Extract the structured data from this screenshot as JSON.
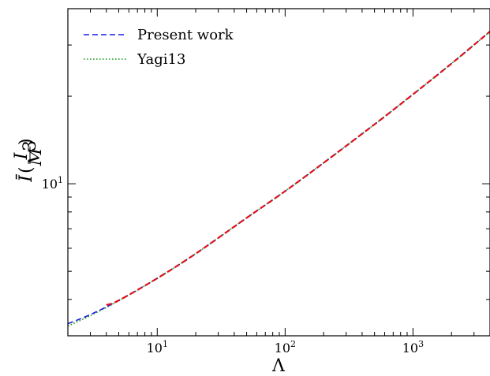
{
  "chart_data": {
    "type": "line",
    "xscale": "log",
    "yscale": "log",
    "xlim": [
      2,
      4000
    ],
    "ylim": [
      3,
      40
    ],
    "xlabel": "Λ",
    "ylabel_main": "Ī",
    "ylabel_frac_num": "I",
    "ylabel_frac_den": "M",
    "ylabel_frac_den_exp": "3",
    "x_ticks": [
      {
        "base": "10",
        "exp": "1",
        "value": 10
      },
      {
        "base": "10",
        "exp": "2",
        "value": 100
      },
      {
        "base": "10",
        "exp": "3",
        "value": 1000
      }
    ],
    "y_ticks": [
      {
        "base": "10",
        "exp": "1",
        "value": 10
      }
    ],
    "legend_position": "upper-left",
    "series": [
      {
        "name": "Present work",
        "color": "#1f1fdd",
        "style": "dashed",
        "x": [
          2,
          3,
          5,
          10,
          20,
          50,
          100,
          200,
          500,
          1000,
          2000,
          4000
        ],
        "y": [
          3.3,
          3.55,
          3.97,
          4.73,
          5.75,
          7.63,
          9.43,
          11.8,
          16.0,
          20.3,
          25.9,
          33.4
        ]
      },
      {
        "name": "Yagi13",
        "color": "#1a9a1a",
        "style": "dotted",
        "x": [
          2,
          3,
          5,
          10,
          20,
          50,
          100,
          200,
          500,
          1000,
          2000,
          4000
        ],
        "y": [
          3.24,
          3.52,
          3.96,
          4.73,
          5.75,
          7.63,
          9.43,
          11.8,
          16.0,
          20.3,
          25.9,
          33.4
        ]
      },
      {
        "name": "",
        "color": "#e0101a",
        "style": "dashed",
        "x": [
          4,
          5,
          10,
          20,
          50,
          100,
          200,
          500,
          1000,
          2000,
          4000
        ],
        "y": [
          3.83,
          3.97,
          4.73,
          5.75,
          7.63,
          9.43,
          11.8,
          16.0,
          20.3,
          25.9,
          33.4
        ]
      }
    ]
  }
}
